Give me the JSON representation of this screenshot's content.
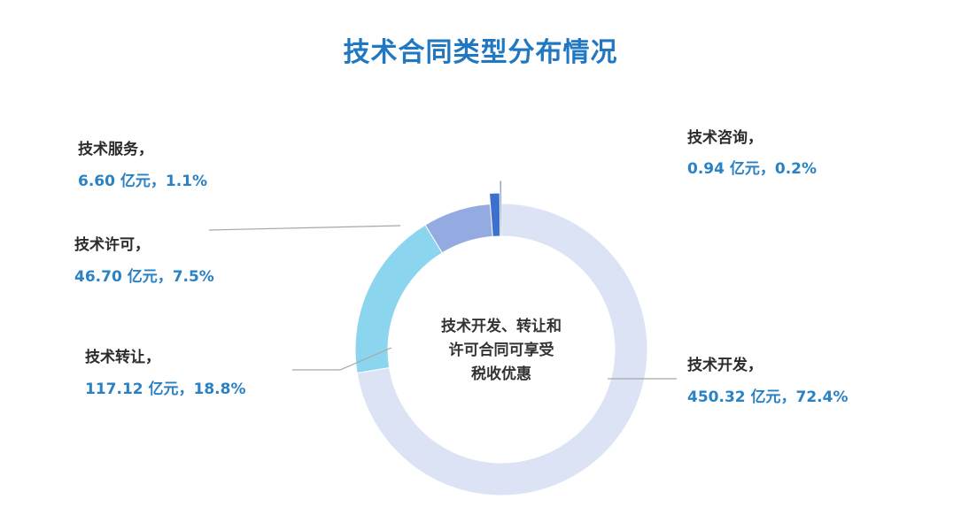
{
  "chart_data": {
    "type": "pie",
    "title": "技术合同类型分布情况",
    "center_label": [
      "技术开发、转让和",
      "许可合同可享受",
      "税收优惠"
    ],
    "slices": [
      {
        "name": "技术开发",
        "value": 450.32,
        "value_label": "450.32 亿元，72.4%",
        "color": "#dce3f4"
      },
      {
        "name": "技术转让",
        "value": 117.12,
        "value_label": "117.12 亿元，18.8%",
        "color": "#8cd5ee"
      },
      {
        "name": "技术许可",
        "value": 46.7,
        "value_label": "46.70 亿元，7.5%",
        "color": "#93abe0"
      },
      {
        "name": "技术服务",
        "value": 6.6,
        "value_label": "6.60 亿元，1.1%",
        "color": "#3d6fcc"
      },
      {
        "name": "技术咨询",
        "value": 0.94,
        "value_label": "0.94 亿元，0.2%",
        "color": "#2150a6"
      }
    ]
  }
}
